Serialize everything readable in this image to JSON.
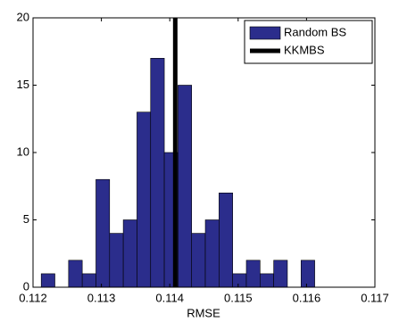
{
  "chart_data": {
    "type": "histogram",
    "xlabel": "RMSE",
    "bins": [
      0.11212,
      0.11232,
      0.11252,
      0.11272,
      0.11292,
      0.11312,
      0.11332,
      0.11352,
      0.11372,
      0.11392,
      0.11412,
      0.11432,
      0.11452,
      0.11472,
      0.11492,
      0.11512,
      0.11532,
      0.11552,
      0.11572,
      0.11592,
      0.11612
    ],
    "series": [
      {
        "name": "Random BS",
        "color": "#2b2d8c",
        "values": [
          1,
          0,
          2,
          1,
          8,
          4,
          5,
          13,
          17,
          10,
          15,
          4,
          5,
          7,
          1,
          2,
          1,
          2,
          0,
          2
        ]
      }
    ],
    "vlines": [
      {
        "name": "KKMBS",
        "color": "#000000",
        "x": 0.11408
      }
    ],
    "xlim": [
      0.112,
      0.117
    ],
    "xticks": [
      0.112,
      0.113,
      0.114,
      0.115,
      0.116,
      0.117
    ],
    "ylim": [
      0,
      20
    ],
    "yticks": [
      0,
      5,
      10,
      15,
      20
    ],
    "legend": "upper right"
  }
}
